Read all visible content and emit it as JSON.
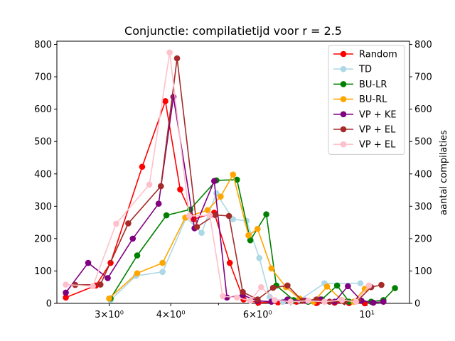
{
  "chart_data": {
    "type": "line",
    "title": "Conjunctie: compilatietijd voor r = 2.5",
    "xlabel": "",
    "ylabel_right": "aantal compilaties",
    "xscale": "log",
    "xlim": [
      2.35,
      12.2
    ],
    "ylim": [
      0,
      810
    ],
    "x_ticks": [
      {
        "value": 3,
        "label": "3×10⁰"
      },
      {
        "value": 4,
        "label": "4×10⁰"
      },
      {
        "value": 6,
        "label": "6×10⁰"
      },
      {
        "value": 10,
        "label": "10¹"
      }
    ],
    "y_ticks": [
      0,
      100,
      200,
      300,
      400,
      500,
      600,
      700,
      800
    ],
    "legend_position": "top-right",
    "series": [
      {
        "name": "Random",
        "color": "#ff0000",
        "x": [
          2.45,
          2.82,
          3.02,
          3.5,
          3.9,
          4.18,
          4.45,
          4.9,
          5.27,
          5.62,
          6.02,
          6.6,
          7.2,
          7.9,
          8.6,
          9.2,
          9.9
        ],
        "y": [
          18,
          55,
          125,
          422,
          625,
          352,
          260,
          280,
          125,
          12,
          2,
          3,
          5,
          1,
          2,
          1,
          0
        ]
      },
      {
        "name": "TD",
        "color": "#add8e6",
        "x": [
          3.02,
          3.4,
          3.85,
          4.3,
          4.62,
          4.95,
          5.35,
          5.7,
          6.05,
          6.35,
          6.75,
          7.3,
          8.2,
          9.7
        ],
        "y": [
          10,
          85,
          97,
          265,
          218,
          340,
          260,
          255,
          140,
          20,
          5,
          10,
          62,
          62
        ]
      },
      {
        "name": "BU-LR",
        "color": "#008000",
        "x": [
          3.02,
          3.42,
          3.92,
          4.38,
          4.95,
          5.45,
          5.8,
          6.25,
          6.55,
          7.1,
          7.6,
          8.1,
          8.7,
          9.2,
          9.7,
          10.2,
          10.8,
          11.4
        ],
        "y": [
          15,
          148,
          272,
          290,
          380,
          382,
          195,
          275,
          55,
          10,
          5,
          12,
          55,
          5,
          8,
          5,
          10,
          47
        ]
      },
      {
        "name": "BU-RL",
        "color": "#ffa500",
        "x": [
          3.0,
          3.42,
          3.85,
          4.28,
          4.75,
          5.05,
          5.35,
          5.75,
          6.0,
          6.4,
          6.85,
          7.3,
          7.8,
          8.3,
          8.9,
          9.4,
          9.9
        ],
        "y": [
          15,
          93,
          125,
          265,
          288,
          330,
          398,
          210,
          230,
          108,
          50,
          15,
          5,
          52,
          10,
          5,
          45
        ]
      },
      {
        "name": "VP + KE",
        "color": "#800080",
        "x": [
          2.45,
          2.72,
          2.98,
          3.35,
          3.78,
          4.05,
          4.47,
          4.9,
          5.2,
          5.6,
          6.0,
          6.4,
          6.9,
          7.5,
          8.05,
          8.6,
          9.15,
          9.75,
          10.3,
          10.8
        ],
        "y": [
          33,
          125,
          78,
          200,
          308,
          638,
          232,
          378,
          18,
          25,
          8,
          5,
          12,
          8,
          12,
          5,
          53,
          8,
          2,
          5
        ]
      },
      {
        "name": "VP + EL",
        "color": "#a52a2a",
        "x": [
          2.56,
          2.88,
          3.28,
          3.82,
          4.12,
          4.52,
          4.92,
          5.25,
          5.6,
          6.0,
          6.45,
          6.9,
          7.4,
          7.9,
          8.4,
          9.0,
          9.6,
          10.2,
          10.7
        ],
        "y": [
          57,
          58,
          247,
          362,
          757,
          236,
          273,
          270,
          35,
          12,
          48,
          55,
          8,
          12,
          5,
          5,
          10,
          50,
          57
        ]
      },
      {
        "name": "VP + EL",
        "color": "#ffc0cb",
        "x": [
          2.45,
          2.78,
          3.1,
          3.62,
          3.98,
          4.36,
          4.8,
          5.1,
          5.45,
          5.8,
          6.1,
          6.5,
          7.0,
          7.6,
          8.2,
          8.9,
          9.5,
          10.1
        ],
        "y": [
          58,
          53,
          246,
          367,
          775,
          270,
          272,
          22,
          18,
          8,
          50,
          10,
          5,
          8,
          5,
          10,
          5,
          55
        ]
      }
    ]
  }
}
